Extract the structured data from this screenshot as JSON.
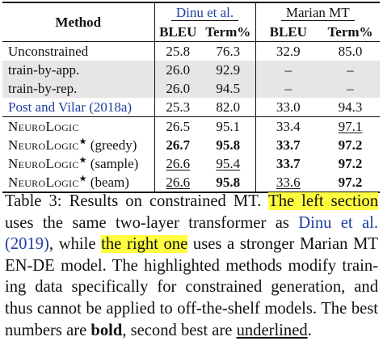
{
  "table": {
    "header": {
      "method": "Method",
      "group1": "Dinu et al.",
      "group2": "Marian MT",
      "bleu": "BLEU",
      "term": "Term%"
    },
    "rows": [
      {
        "method": "Unconstrained",
        "v": [
          "25.8",
          "76.3",
          "32.9",
          "85.0"
        ]
      },
      {
        "method": "train-by-app.",
        "v": [
          "26.0",
          "92.9",
          "–",
          "–"
        ]
      },
      {
        "method": "train-by-rep.",
        "v": [
          "26.0",
          "94.5",
          "–",
          "–"
        ]
      },
      {
        "method": "Post and Vilar (2018a)",
        "v": [
          "25.3",
          "82.0",
          "33.0",
          "94.3"
        ]
      },
      {
        "method": "NeuroLogic",
        "v": [
          "26.5",
          "95.1",
          "33.4",
          "97.1"
        ]
      },
      {
        "method": "NeuroLogic",
        "star": "★",
        "suffix": "(greedy)",
        "v": [
          "26.7",
          "95.8",
          "33.7",
          "97.2"
        ]
      },
      {
        "method": "NeuroLogic",
        "star": "★",
        "suffix": "(sample)",
        "v": [
          "26.6",
          "95.4",
          "33.7",
          "97.2"
        ]
      },
      {
        "method": "NeuroLogic",
        "star": "★",
        "suffix": "(beam)",
        "v": [
          "26.6",
          "95.8",
          "33.6",
          "97.2"
        ]
      }
    ]
  },
  "caption": {
    "label": "Table 3:",
    "t1": "Results on constrained MT.",
    "hl1": "The left section",
    "t2": "uses the same two-layer transformer as",
    "cite": "Dinu et al.",
    "cite_year": "(2019)",
    "t3": ", while",
    "hl2": "the right one",
    "t4": "uses a stronger Marian MT",
    "t5": "EN-DE model. The highlighted methods modify train-",
    "t6": "ing data specifically for constrained generation, and",
    "t7": "thus cannot be applied to off-the-shelf models. The best",
    "t8": "numbers are",
    "bold_word": "bold",
    "t9": ", second best are",
    "underlined_word": "underlined",
    "t10": "."
  },
  "colors": {
    "link": "#1f3fa0",
    "highlight": "#ffff3f",
    "row_shade": "#e6e6e6"
  }
}
